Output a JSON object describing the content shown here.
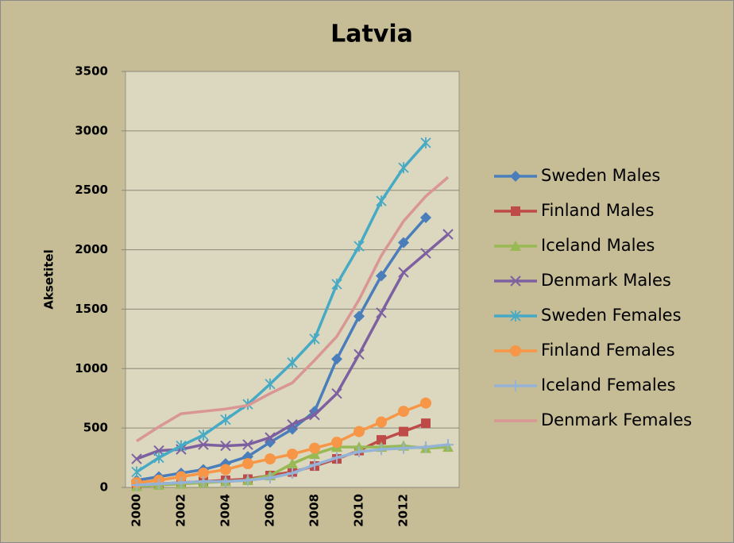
{
  "chart_data": {
    "type": "line",
    "title": "Latvia",
    "ylabel": "Aksetitel",
    "categories": [
      "2000",
      null,
      "2002",
      null,
      "2004",
      null,
      "2006",
      null,
      "2008",
      null,
      "2010",
      null,
      "2012",
      null,
      null
    ],
    "ylim": [
      0,
      3500
    ],
    "yticks": [
      0,
      500,
      1000,
      1500,
      2000,
      2500,
      3000,
      3500
    ],
    "grid": true,
    "legend": "right",
    "series": [
      {
        "name": "Sweden Males",
        "color": "#4a7ebb",
        "marker": "diamond",
        "values": [
          60,
          90,
          120,
          150,
          200,
          260,
          380,
          490,
          640,
          1080,
          1440,
          1780,
          2060,
          2270,
          null
        ]
      },
      {
        "name": "Finland Males",
        "color": "#be4b48",
        "marker": "square",
        "values": [
          20,
          30,
          40,
          50,
          60,
          70,
          100,
          130,
          180,
          240,
          310,
          400,
          470,
          540,
          null
        ]
      },
      {
        "name": "Iceland Males",
        "color": "#98b954",
        "marker": "triangle",
        "values": [
          10,
          20,
          30,
          40,
          50,
          60,
          100,
          200,
          280,
          340,
          340,
          340,
          350,
          330,
          340
        ]
      },
      {
        "name": "Denmark Males",
        "color": "#7d60a0",
        "marker": "x",
        "values": [
          240,
          310,
          320,
          360,
          350,
          360,
          420,
          530,
          610,
          790,
          1120,
          1470,
          1810,
          1970,
          2130
        ]
      },
      {
        "name": "Sweden Females",
        "color": "#46aac5",
        "marker": "star",
        "values": [
          130,
          250,
          350,
          440,
          570,
          700,
          870,
          1050,
          1250,
          1710,
          2030,
          2410,
          2690,
          2900,
          null
        ]
      },
      {
        "name": "Finland Females",
        "color": "#f79646",
        "marker": "circle",
        "values": [
          40,
          60,
          90,
          120,
          150,
          200,
          240,
          280,
          330,
          380,
          470,
          550,
          640,
          710,
          null
        ]
      },
      {
        "name": "Iceland Females",
        "color": "#95b3d7",
        "marker": "plus",
        "values": [
          20,
          30,
          40,
          50,
          50,
          60,
          80,
          120,
          190,
          250,
          300,
          320,
          330,
          340,
          360
        ]
      },
      {
        "name": "Denmark Females",
        "color": "#d99694",
        "marker": "none",
        "values": [
          390,
          510,
          620,
          640,
          660,
          690,
          790,
          880,
          1070,
          1270,
          1580,
          1950,
          2240,
          2450,
          2610
        ]
      }
    ]
  }
}
